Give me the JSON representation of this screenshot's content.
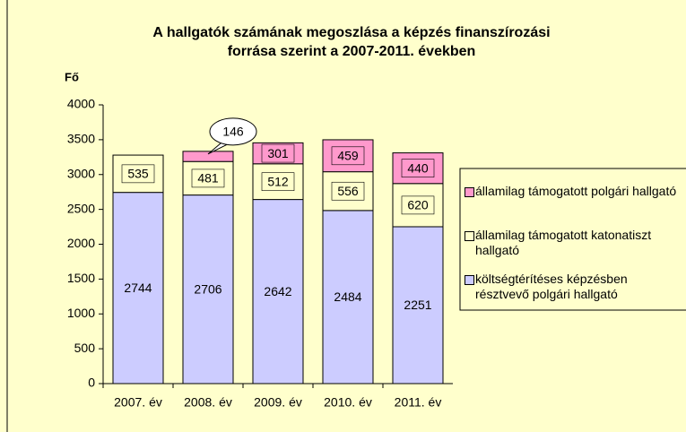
{
  "chart_data": {
    "type": "stacked-bar",
    "title": [
      "A hallgatók számának megoszlása a képzés finanszírozási",
      "forrása szerint a 2007-2011. években"
    ],
    "y_label": "Fő",
    "categories": [
      "2007. év",
      "2008. év",
      "2009. év",
      "2010. év",
      "2011. év"
    ],
    "series": [
      {
        "name": "költségtérítéses képzésben résztvevő polgári hallgató",
        "color": "#ccccff",
        "values": [
          2744,
          2706,
          2642,
          2484,
          2251
        ]
      },
      {
        "name": "államilag támogatott katonatiszt hallgató",
        "color": "#ffffcc",
        "values": [
          535,
          481,
          512,
          556,
          620
        ]
      },
      {
        "name": "államilag támogatott polgári hallgató",
        "color": "#ff99cc",
        "values": [
          null,
          146,
          301,
          459,
          440
        ]
      }
    ],
    "ylim": [
      0,
      4000
    ],
    "yticks": [
      0,
      500,
      1000,
      1500,
      2000,
      2500,
      3000,
      3500,
      4000
    ]
  }
}
